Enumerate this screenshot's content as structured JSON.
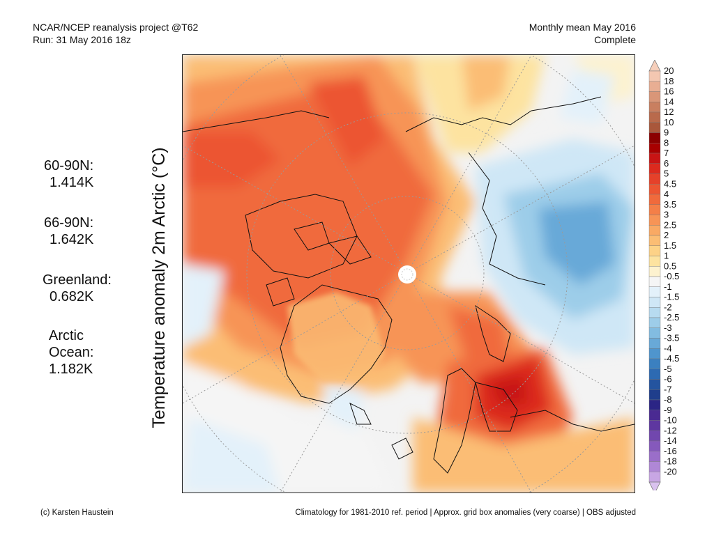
{
  "header": {
    "line1": "NCAR/NCEP reanalysis project @T62",
    "line2": "Run: 31 May 2016 18z",
    "right1": "Monthly mean May 2016",
    "right2": "Complete"
  },
  "axis_title": "Temperature anomaly 2m Arctic (°C)",
  "stats": [
    {
      "label": "60-90N:",
      "value": "1.414K"
    },
    {
      "label": "66-90N:",
      "value": "1.642K"
    },
    {
      "label": "Greenland:",
      "value": "0.682K"
    },
    {
      "label": "Arctic",
      "label2": "Ocean:",
      "value": "1.182K"
    }
  ],
  "colorbar": {
    "labels": [
      "20",
      "18",
      "16",
      "14",
      "12",
      "10",
      "9",
      "8",
      "7",
      "6",
      "5",
      "4.5",
      "4",
      "3.5",
      "3",
      "2.5",
      "2",
      "1.5",
      "1",
      "0.5",
      "-0.5",
      "-1",
      "-1.5",
      "-2",
      "-2.5",
      "-3",
      "-3.5",
      "-4",
      "-4.5",
      "-5",
      "-6",
      "-7",
      "-8",
      "-9",
      "-10",
      "-12",
      "-14",
      "-16",
      "-18",
      "-20"
    ],
    "colors": [
      "#f4c7b1",
      "#e8ae93",
      "#d99678",
      "#c97f60",
      "#b96a4c",
      "#a9573b",
      "#8b0000",
      "#a80000",
      "#c81414",
      "#dc2a1e",
      "#e5412a",
      "#ec5532",
      "#f06a3c",
      "#f47f48",
      "#f79456",
      "#f9a964",
      "#fbbd74",
      "#fdd287",
      "#fde3a0",
      "#fdf2cf",
      "#f5f5f5",
      "#e3f1fa",
      "#cfe7f6",
      "#b7dbf0",
      "#9dcde9",
      "#82bce1",
      "#68a9d8",
      "#4f95cd",
      "#3b80c0",
      "#2d6ab2",
      "#24549f",
      "#1f3e8c",
      "#2b2585",
      "#4a2a92",
      "#5e37a0",
      "#7147ae",
      "#8559bc",
      "#9a6ec9",
      "#af87d6",
      "#c8a6e4"
    ],
    "top_arrow": "#f6cfbb",
    "bottom_arrow": "#d9c2ee"
  },
  "footer": {
    "left": "(c) Karsten Haustein",
    "right": "Climatology for 1981-2010 ref. period | Approx. grid box anomalies (very coarse) | OBS adjusted"
  }
}
